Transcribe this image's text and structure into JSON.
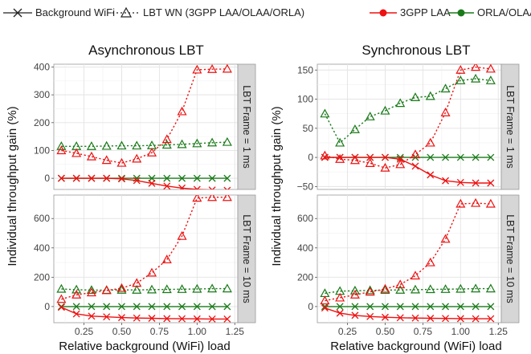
{
  "legend": {
    "linetype_items": [
      {
        "label": "Background WiFi",
        "marker": "x",
        "dash": "solid"
      },
      {
        "label": "LBT WN (3GPP LAA/OLAA/ORLA)",
        "marker": "triangle",
        "dash": "dotted"
      }
    ],
    "color_items": [
      {
        "label": "3GPP LAA",
        "color": "#ee1111"
      },
      {
        "label": "ORLA/OLAA",
        "color": "#1a7a1a"
      }
    ]
  },
  "chart_data": {
    "type": "line",
    "layout": "2x2 facet grid",
    "xlabel": "Relative background (WiFi) load",
    "ylabel": "Individual throughput gain (%)",
    "xlim": [
      0.05,
      1.27
    ],
    "x_ticks": [
      0.25,
      0.5,
      0.75,
      1.0,
      1.25
    ],
    "x_tick_labels": [
      "0.25",
      "0.50",
      "0.75",
      "1.00",
      "1.25"
    ],
    "x": [
      0.1,
      0.2,
      0.3,
      0.4,
      0.5,
      0.6,
      0.7,
      0.8,
      0.9,
      1.0,
      1.1,
      1.2
    ],
    "column_titles": [
      "Asynchronous LBT",
      "Synchronous LBT"
    ],
    "row_strips": [
      "LBT Frame = 1 ms",
      "LBT Frame = 10 ms"
    ],
    "colors": {
      "laa": "#ee1111",
      "orla": "#1a7a1a"
    },
    "panels": [
      {
        "row": 0,
        "col": 0,
        "ylim": [
          -40,
          410
        ],
        "y_ticks": [
          0,
          100,
          200,
          300,
          400
        ],
        "y_tick_labels": [
          "0",
          "100",
          "200",
          "300",
          "400"
        ],
        "series": [
          {
            "color_group": "3GPP LAA",
            "marker": "x",
            "dash": "solid",
            "values": [
              0,
              0,
              0,
              0,
              -2,
              -8,
              -18,
              -28,
              -35,
              -40,
              -42,
              -43
            ]
          },
          {
            "color_group": "3GPP LAA",
            "marker": "triangle",
            "dash": "dotted",
            "values": [
              100,
              90,
              78,
              65,
              55,
              70,
              92,
              140,
              240,
              390,
              392,
              393
            ]
          },
          {
            "color_group": "ORLA/OLAA",
            "marker": "x",
            "dash": "solid",
            "values": [
              0,
              0,
              0,
              0,
              0,
              0,
              0,
              0,
              0,
              0,
              0,
              0
            ]
          },
          {
            "color_group": "ORLA/OLAA",
            "marker": "triangle",
            "dash": "dotted",
            "values": [
              115,
              115,
              115,
              116,
              117,
              117,
              118,
              120,
              122,
              125,
              128,
              130
            ]
          }
        ]
      },
      {
        "row": 0,
        "col": 1,
        "ylim": [
          -55,
          160
        ],
        "y_ticks": [
          -50,
          0,
          50,
          100,
          150
        ],
        "y_tick_labels": [
          "−50",
          "0",
          "50",
          "100",
          "150"
        ],
        "series": [
          {
            "color_group": "3GPP LAA",
            "marker": "x",
            "dash": "solid",
            "values": [
              0,
              0,
              0,
              0,
              0,
              -3,
              -15,
              -30,
              -40,
              -43,
              -44,
              -44
            ]
          },
          {
            "color_group": "3GPP LAA",
            "marker": "triangle",
            "dash": "dotted",
            "values": [
              3,
              -3,
              -5,
              -10,
              -18,
              -12,
              5,
              25,
              77,
              150,
              155,
              152
            ]
          },
          {
            "color_group": "ORLA/OLAA",
            "marker": "x",
            "dash": "solid",
            "values": [
              0,
              0,
              0,
              0,
              0,
              0,
              0,
              0,
              0,
              0,
              0,
              0
            ]
          },
          {
            "color_group": "ORLA/OLAA",
            "marker": "triangle",
            "dash": "dotted",
            "values": [
              75,
              25,
              48,
              70,
              80,
              93,
              103,
              105,
              118,
              132,
              135,
              132
            ]
          }
        ]
      },
      {
        "row": 1,
        "col": 0,
        "ylim": [
          -110,
          760
        ],
        "y_ticks": [
          0,
          200,
          400,
          600
        ],
        "y_tick_labels": [
          "0",
          "200",
          "400",
          "600"
        ],
        "series": [
          {
            "color_group": "3GPP LAA",
            "marker": "x",
            "dash": "solid",
            "values": [
              -5,
              -50,
              -65,
              -70,
              -75,
              -78,
              -80,
              -82,
              -83,
              -84,
              -85,
              -85
            ]
          },
          {
            "color_group": "3GPP LAA",
            "marker": "triangle",
            "dash": "dotted",
            "values": [
              50,
              80,
              95,
              110,
              125,
              160,
              230,
              320,
              480,
              740,
              745,
              745
            ]
          },
          {
            "color_group": "ORLA/OLAA",
            "marker": "x",
            "dash": "solid",
            "values": [
              0,
              0,
              0,
              0,
              0,
              0,
              0,
              0,
              0,
              0,
              0,
              0
            ]
          },
          {
            "color_group": "ORLA/OLAA",
            "marker": "triangle",
            "dash": "dotted",
            "values": [
              120,
              115,
              112,
              112,
              113,
              113,
              115,
              117,
              118,
              120,
              122,
              122
            ]
          }
        ]
      },
      {
        "row": 1,
        "col": 1,
        "ylim": [
          -110,
          760
        ],
        "y_ticks": [
          0,
          200,
          400,
          600
        ],
        "y_tick_labels": [
          "0",
          "200",
          "400",
          "600"
        ],
        "series": [
          {
            "color_group": "3GPP LAA",
            "marker": "x",
            "dash": "solid",
            "values": [
              -10,
              -45,
              -60,
              -68,
              -73,
              -76,
              -78,
              -80,
              -81,
              -82,
              -83,
              -83
            ]
          },
          {
            "color_group": "3GPP LAA",
            "marker": "triangle",
            "dash": "dotted",
            "values": [
              40,
              60,
              80,
              100,
              120,
              150,
              210,
              300,
              460,
              700,
              705,
              700
            ]
          },
          {
            "color_group": "ORLA/OLAA",
            "marker": "x",
            "dash": "solid",
            "values": [
              0,
              0,
              0,
              0,
              0,
              0,
              0,
              0,
              0,
              0,
              0,
              0
            ]
          },
          {
            "color_group": "ORLA/OLAA",
            "marker": "triangle",
            "dash": "dotted",
            "values": [
              90,
              105,
              108,
              110,
              112,
              113,
              115,
              117,
              118,
              120,
              122,
              122
            ]
          }
        ]
      }
    ]
  }
}
